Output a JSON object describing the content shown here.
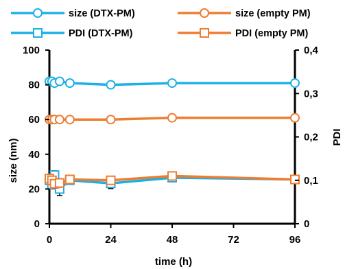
{
  "chart_data": {
    "type": "line",
    "xlabel": "time (h)",
    "ylabel": "size (nm)",
    "y2label": "PDI",
    "xlim": [
      0,
      96
    ],
    "ylim": [
      0,
      100
    ],
    "y2lim": [
      0,
      0.4
    ],
    "x_ticks": [
      "0",
      "24",
      "48",
      "72",
      "96"
    ],
    "y_ticks": [
      "0",
      "20",
      "40",
      "60",
      "80",
      "100"
    ],
    "y2_ticks": [
      "0",
      "0,1",
      "0,2",
      "0,3",
      "0,4"
    ],
    "grid": false,
    "legend_position": "top",
    "series": [
      {
        "name": "size (DTX-PM)",
        "axis": "left",
        "marker": "circle",
        "color": "#1CB0E8",
        "x": [
          0,
          1,
          2,
          4,
          8,
          24,
          48,
          96
        ],
        "y": [
          82,
          82,
          81,
          82,
          81,
          80,
          81,
          81
        ],
        "err": [
          0,
          0,
          1,
          2,
          1,
          1,
          1,
          1
        ]
      },
      {
        "name": "size (empty PM)",
        "axis": "left",
        "marker": "circle",
        "color": "#ED7D31",
        "x": [
          0,
          1,
          2,
          4,
          8,
          24,
          48,
          96
        ],
        "y": [
          60,
          60,
          60,
          60,
          60,
          60,
          61,
          61
        ],
        "err": [
          0,
          0,
          0,
          0,
          0,
          0,
          1,
          1
        ]
      },
      {
        "name": "PDI (DTX-PM)",
        "axis": "right",
        "marker": "square",
        "color": "#1CB0E8",
        "x": [
          0,
          1,
          2,
          4,
          8,
          24,
          48,
          96
        ],
        "y": [
          0.1,
          0.09,
          0.112,
          0.08,
          0.1,
          0.093,
          0.106,
          0.102
        ],
        "err": [
          0,
          0.01,
          0.01,
          0.015,
          0.005,
          0.012,
          0.008,
          0.004
        ]
      },
      {
        "name": "PDI (empty PM)",
        "axis": "right",
        "marker": "square",
        "color": "#ED7D31",
        "x": [
          0,
          1,
          2,
          4,
          8,
          24,
          48,
          96
        ],
        "y": [
          0.104,
          0.1,
          0.092,
          0.094,
          0.102,
          0.1,
          0.11,
          0.102
        ],
        "err": [
          0,
          0.008,
          0.01,
          0.01,
          0.005,
          0.006,
          0.006,
          0.004
        ]
      }
    ]
  }
}
